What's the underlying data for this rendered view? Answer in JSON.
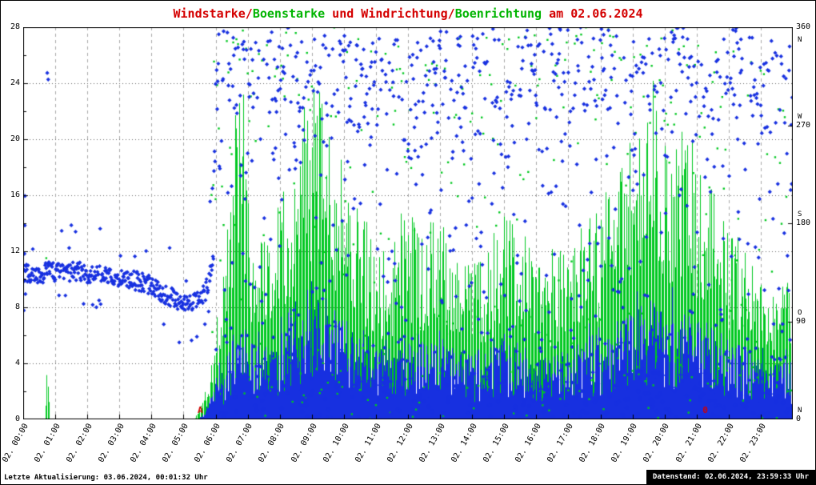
{
  "title": {
    "parts": [
      {
        "text": "Windstarke/",
        "color": "#d40000"
      },
      {
        "text": "Boenstarke",
        "color": "#00b400"
      },
      {
        "text": " und Windrichtung/",
        "color": "#d40000"
      },
      {
        "text": "Boenrichtung",
        "color": "#00b400"
      },
      {
        "text": " am 02.06.2024",
        "color": "#d40000"
      }
    ]
  },
  "footer": {
    "left": "Letzte Aktualisierung: 03.06.2024, 00:01:32 Uhr",
    "right": "Datenstand: 02.06.2024, 23:59:33 Uhr"
  },
  "chart_data": {
    "type": "mixed",
    "title": "Windstarke/Boenstarke und Windrichtung/Boenrichtung am 02.06.2024",
    "x_axis": {
      "kind": "time",
      "date": "02.06.2024",
      "range_hours": [
        0,
        24
      ],
      "tick_labels": [
        "02. 00:00",
        "02. 01:00",
        "02. 02:00",
        "02. 03:00",
        "02. 04:00",
        "02. 05:00",
        "02. 06:00",
        "02. 07:00",
        "02. 08:00",
        "02. 09:00",
        "02. 10:00",
        "02. 11:00",
        "02. 12:00",
        "02. 13:00",
        "02. 14:00",
        "02. 15:00",
        "02. 16:00",
        "02. 17:00",
        "02. 18:00",
        "02. 19:00",
        "02. 20:00",
        "02. 21:00",
        "02. 22:00",
        "02. 23:00"
      ]
    },
    "y_left": {
      "name": "Windstarke/Boenstarke",
      "ticks": [
        0,
        4,
        8,
        12,
        16,
        20,
        24,
        28
      ],
      "range": [
        0,
        28
      ]
    },
    "y_right": {
      "name": "Windrichtung/Boenrichtung",
      "ticks": [
        0,
        90,
        180,
        270,
        360
      ],
      "range": [
        0,
        360
      ],
      "compass": [
        {
          "deg": 348,
          "letter": "N"
        },
        {
          "deg": 278,
          "letter": "W"
        },
        {
          "deg": 188,
          "letter": "S"
        },
        {
          "deg": 98,
          "letter": "O"
        },
        {
          "deg": 8,
          "letter": "N"
        }
      ]
    },
    "colors": {
      "wind": "#1730e0",
      "gust": "#00c820",
      "grid_h": "#606060",
      "grid_v": "#a8a8a8",
      "frame": "#000000",
      "annotation": "#d40000"
    },
    "seed": 1337,
    "series": [
      {
        "name": "Boenstarke",
        "kind": "impulse-bars",
        "axis": "left",
        "color_key": "gust",
        "step_min": 2,
        "rand_min": 0.5,
        "rand_span": 0.62,
        "spike_prob": 0.05,
        "spike_gain": 1.12,
        "max": 28,
        "envelope_kf_h_value": [
          [
            0,
            0
          ],
          [
            0.68,
            0
          ],
          [
            0.72,
            3.2
          ],
          [
            0.78,
            3
          ],
          [
            0.82,
            0
          ],
          [
            5.35,
            0
          ],
          [
            5.6,
            1.5
          ],
          [
            5.9,
            4
          ],
          [
            6.1,
            8
          ],
          [
            6.3,
            12
          ],
          [
            6.5,
            16
          ],
          [
            6.65,
            24
          ],
          [
            6.78,
            26
          ],
          [
            6.9,
            20
          ],
          [
            7.1,
            13
          ],
          [
            7.4,
            12
          ],
          [
            7.7,
            14
          ],
          [
            8,
            15
          ],
          [
            8.3,
            17
          ],
          [
            8.6,
            19
          ],
          [
            8.9,
            21
          ],
          [
            9.1,
            22
          ],
          [
            9.35,
            20
          ],
          [
            9.6,
            17
          ],
          [
            9.9,
            18
          ],
          [
            10.2,
            16
          ],
          [
            10.5,
            14
          ],
          [
            10.8,
            12
          ],
          [
            11.2,
            11
          ],
          [
            11.6,
            12
          ],
          [
            12,
            13.5
          ],
          [
            12.4,
            12
          ],
          [
            12.8,
            13
          ],
          [
            13.2,
            12
          ],
          [
            13.6,
            10.5
          ],
          [
            14,
            10
          ],
          [
            14.5,
            11
          ],
          [
            15,
            13.5
          ],
          [
            15.4,
            12
          ],
          [
            15.8,
            10.5
          ],
          [
            16.2,
            10
          ],
          [
            16.6,
            10.5
          ],
          [
            17,
            11
          ],
          [
            17.5,
            12.5
          ],
          [
            18,
            13.5
          ],
          [
            18.4,
            15.5
          ],
          [
            18.8,
            17
          ],
          [
            19.2,
            18.5
          ],
          [
            19.5,
            19.5
          ],
          [
            19.8,
            20
          ],
          [
            20.1,
            18.5
          ],
          [
            20.4,
            19.5
          ],
          [
            20.7,
            18
          ],
          [
            21,
            16.5
          ],
          [
            21.3,
            17
          ],
          [
            21.7,
            14
          ],
          [
            22,
            12.5
          ],
          [
            22.4,
            11
          ],
          [
            22.8,
            10
          ],
          [
            23.2,
            10
          ],
          [
            23.6,
            9
          ],
          [
            24,
            8.5
          ]
        ]
      },
      {
        "name": "Windstarke",
        "kind": "impulse-bars",
        "axis": "left",
        "color_key": "wind",
        "step_min": 1,
        "rand_min": 0.35,
        "rand_span": 1.0,
        "spike_prob": 0.03,
        "spike_gain": 1.5,
        "max": 13.8,
        "envelope_kf_h_value": [
          [
            0,
            0
          ],
          [
            5.45,
            0
          ],
          [
            5.7,
            0.6
          ],
          [
            6,
            2.2
          ],
          [
            6.3,
            3.2
          ],
          [
            6.65,
            5
          ],
          [
            7,
            4
          ],
          [
            7.5,
            4.2
          ],
          [
            8,
            4.8
          ],
          [
            8.5,
            5.4
          ],
          [
            9,
            6.2
          ],
          [
            9.3,
            6.8
          ],
          [
            9.7,
            5.8
          ],
          [
            10,
            5.4
          ],
          [
            10.5,
            4.8
          ],
          [
            11,
            4.2
          ],
          [
            11.5,
            4
          ],
          [
            12,
            4.4
          ],
          [
            12.5,
            4.2
          ],
          [
            13,
            4.4
          ],
          [
            13.5,
            3.8
          ],
          [
            14,
            3.4
          ],
          [
            14.5,
            3.8
          ],
          [
            15,
            4.4
          ],
          [
            15.5,
            4
          ],
          [
            16,
            3.4
          ],
          [
            16.5,
            3.6
          ],
          [
            17,
            3.9
          ],
          [
            17.5,
            4.2
          ],
          [
            18,
            4.8
          ],
          [
            18.5,
            5.2
          ],
          [
            19,
            5.8
          ],
          [
            19.5,
            6.4
          ],
          [
            20,
            6.2
          ],
          [
            20.5,
            5.8
          ],
          [
            21,
            5.4
          ],
          [
            21.5,
            5
          ],
          [
            22,
            4.2
          ],
          [
            22.5,
            3.8
          ],
          [
            23,
            3.4
          ],
          [
            23.5,
            3.2
          ],
          [
            24,
            3
          ]
        ]
      },
      {
        "name": "Windrichtung",
        "kind": "scatter-diamond",
        "axis": "right",
        "color_key": "wind",
        "step_min": 1,
        "calm_until_h": 5.95,
        "calm_jitter_deg": 9,
        "calm_kf_h_deg": [
          [
            0,
            136
          ],
          [
            0.4,
            132
          ],
          [
            0.8,
            136
          ],
          [
            1.2,
            134
          ],
          [
            1.6,
            137
          ],
          [
            2,
            134
          ],
          [
            2.4,
            135
          ],
          [
            2.8,
            131
          ],
          [
            3.2,
            130
          ],
          [
            3.6,
            127
          ],
          [
            4,
            123
          ],
          [
            4.3,
            117
          ],
          [
            4.6,
            112
          ],
          [
            4.9,
            108
          ],
          [
            5.2,
            106
          ],
          [
            5.5,
            108
          ],
          [
            5.7,
            118
          ],
          [
            5.85,
            138
          ],
          [
            5.95,
            158
          ]
        ],
        "variable_north_frac": 0.55,
        "variable_center_deg": 345,
        "variable_sd_deg": 45
      },
      {
        "name": "Boenrichtung",
        "kind": "scatter-dot",
        "axis": "right",
        "color_key": "gust",
        "step_min": 3,
        "from_h": 5.9,
        "variable_north_frac": 0.5,
        "variable_center_deg": 350,
        "variable_sd_deg": 50
      }
    ],
    "extra_points": {
      "wind_dir_h_deg": [
        [
          0.02,
          100
        ],
        [
          0.03,
          127
        ],
        [
          0.04,
          152
        ],
        [
          0.05,
          178
        ],
        [
          0.055,
          205
        ],
        [
          0.07,
          115
        ],
        [
          0.75,
          318
        ],
        [
          0.78,
          312
        ],
        [
          5.83,
          200
        ],
        [
          5.9,
          212
        ],
        [
          5.95,
          228
        ]
      ],
      "gust_dir_h_deg": [
        [
          0.72,
          148
        ],
        [
          0.76,
          143
        ],
        [
          5.87,
          206
        ],
        [
          5.93,
          215
        ]
      ]
    },
    "annotations": [
      {
        "h": 5.52,
        "text": "A"
      },
      {
        "h": 21.27,
        "text": "0"
      }
    ]
  }
}
